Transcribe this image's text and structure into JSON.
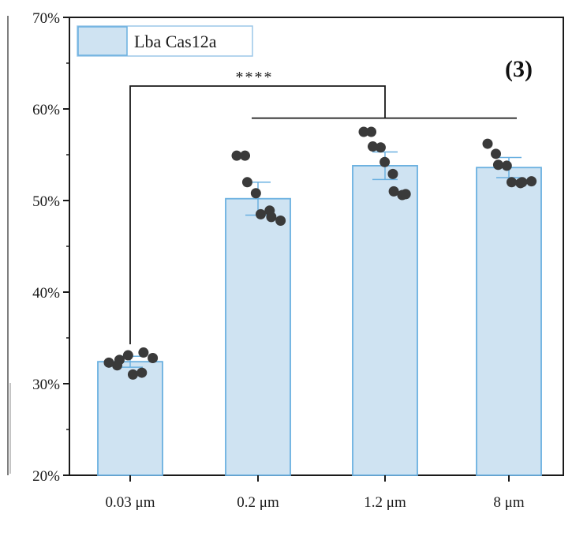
{
  "chart_data": {
    "type": "bar",
    "panel_label": "(3)",
    "legend": {
      "label": "Lba Cas12a",
      "position": "top-left"
    },
    "categories": [
      "0.03 μm",
      "0.2 μm",
      "1.2 μm",
      "8 μm"
    ],
    "series": [
      {
        "name": "Lba Cas12a",
        "values": [
          32.4,
          50.2,
          53.8,
          53.6
        ],
        "errors": [
          0.6,
          1.8,
          1.5,
          1.1
        ]
      }
    ],
    "points": [
      [
        32.3,
        32.0,
        32.6,
        33.1,
        31.0,
        31.2,
        33.4,
        32.8
      ],
      [
        54.9,
        54.9,
        52.0,
        50.8,
        48.5,
        48.9,
        48.2,
        47.8
      ],
      [
        57.5,
        57.5,
        55.9,
        55.8,
        54.2,
        52.9,
        51.0,
        50.6,
        50.7
      ],
      [
        56.2,
        55.1,
        53.9,
        53.8,
        52.0,
        51.9,
        52.0,
        52.1
      ]
    ],
    "significance": {
      "label": "****",
      "from": "0.03 μm",
      "to": [
        "0.2 μm",
        "1.2 μm",
        "8 μm"
      ]
    },
    "ylim": [
      20,
      70
    ],
    "yticks": [
      "20%",
      "30%",
      "40%",
      "50%",
      "60%",
      "70%"
    ],
    "ytick_values": [
      20,
      30,
      40,
      50,
      60,
      70
    ],
    "xlabel": "",
    "ylabel": "",
    "colors": {
      "bar_fill": "#cfe3f2",
      "bar_stroke": "#6ab0e0",
      "point": "#3a3a3a",
      "axis": "#1a1a1a"
    }
  }
}
